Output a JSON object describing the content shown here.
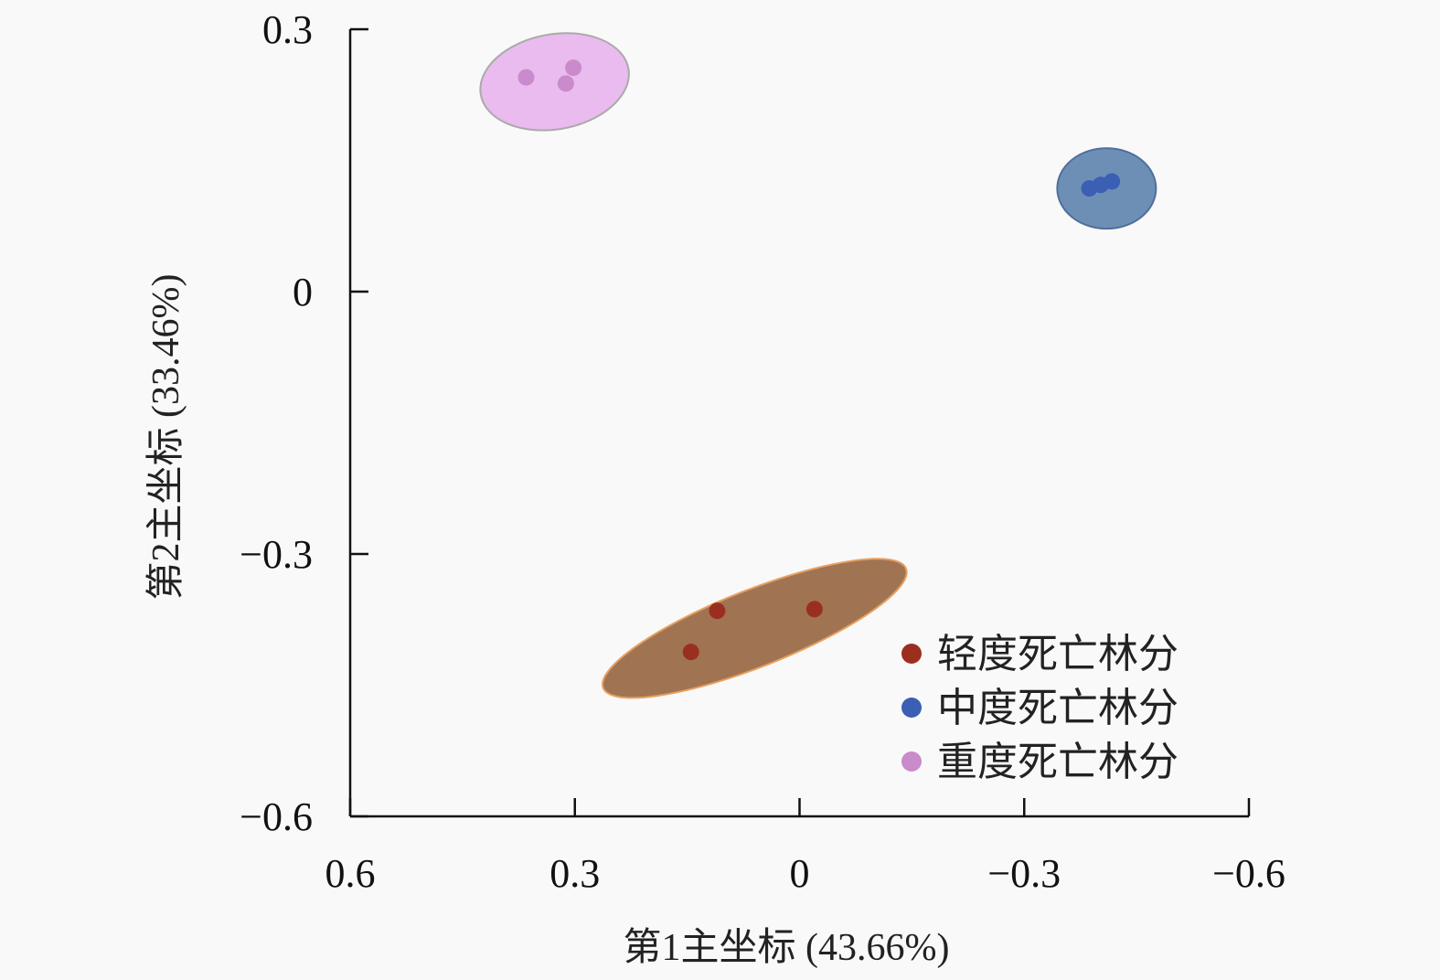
{
  "chart_data": {
    "type": "scatter",
    "title": "",
    "xlabel": "第1主坐标 (43.66%)",
    "ylabel": "第2主坐标 (33.46%)",
    "xlim": [
      0.6,
      -0.6
    ],
    "ylim": [
      -0.6,
      0.3
    ],
    "x_reversed": true,
    "xticks": [
      0.6,
      0.3,
      0,
      -0.3,
      -0.6
    ],
    "xtick_labels": [
      "0.6",
      "0.3",
      "0",
      "−0.3",
      "−0.6"
    ],
    "yticks": [
      0.3,
      0,
      -0.3,
      -0.6
    ],
    "ytick_labels": [
      "0.3",
      "0",
      "−0.3",
      "−0.6"
    ],
    "grid": false,
    "legend_position": "bottom-right",
    "series": [
      {
        "name": "轻度死亡林分",
        "color": "#9b2f1f",
        "ellipse_color": "#a07453",
        "ellipse_stroke": "#e8a060",
        "x": [
          0.11,
          -0.02,
          0.145
        ],
        "y": [
          -0.365,
          -0.363,
          -0.412
        ],
        "ellipse_center": [
          0.06,
          -0.385
        ]
      },
      {
        "name": "中度死亡林分",
        "color": "#3a5fb5",
        "ellipse_color": "#6d8fb6",
        "ellipse_stroke": "#4f6f9c",
        "x": [
          -0.387,
          -0.417,
          -0.402
        ],
        "y": [
          0.118,
          0.126,
          0.122
        ],
        "ellipse_center": [
          -0.41,
          0.118
        ]
      },
      {
        "name": "重度死亡林分",
        "color": "#c98bcb",
        "ellipse_color": "#e9bbee",
        "ellipse_stroke": "#aaaaaa",
        "x": [
          0.365,
          0.302,
          0.312
        ],
        "y": [
          0.245,
          0.256,
          0.238
        ],
        "ellipse_center": [
          0.327,
          0.24
        ]
      }
    ]
  }
}
